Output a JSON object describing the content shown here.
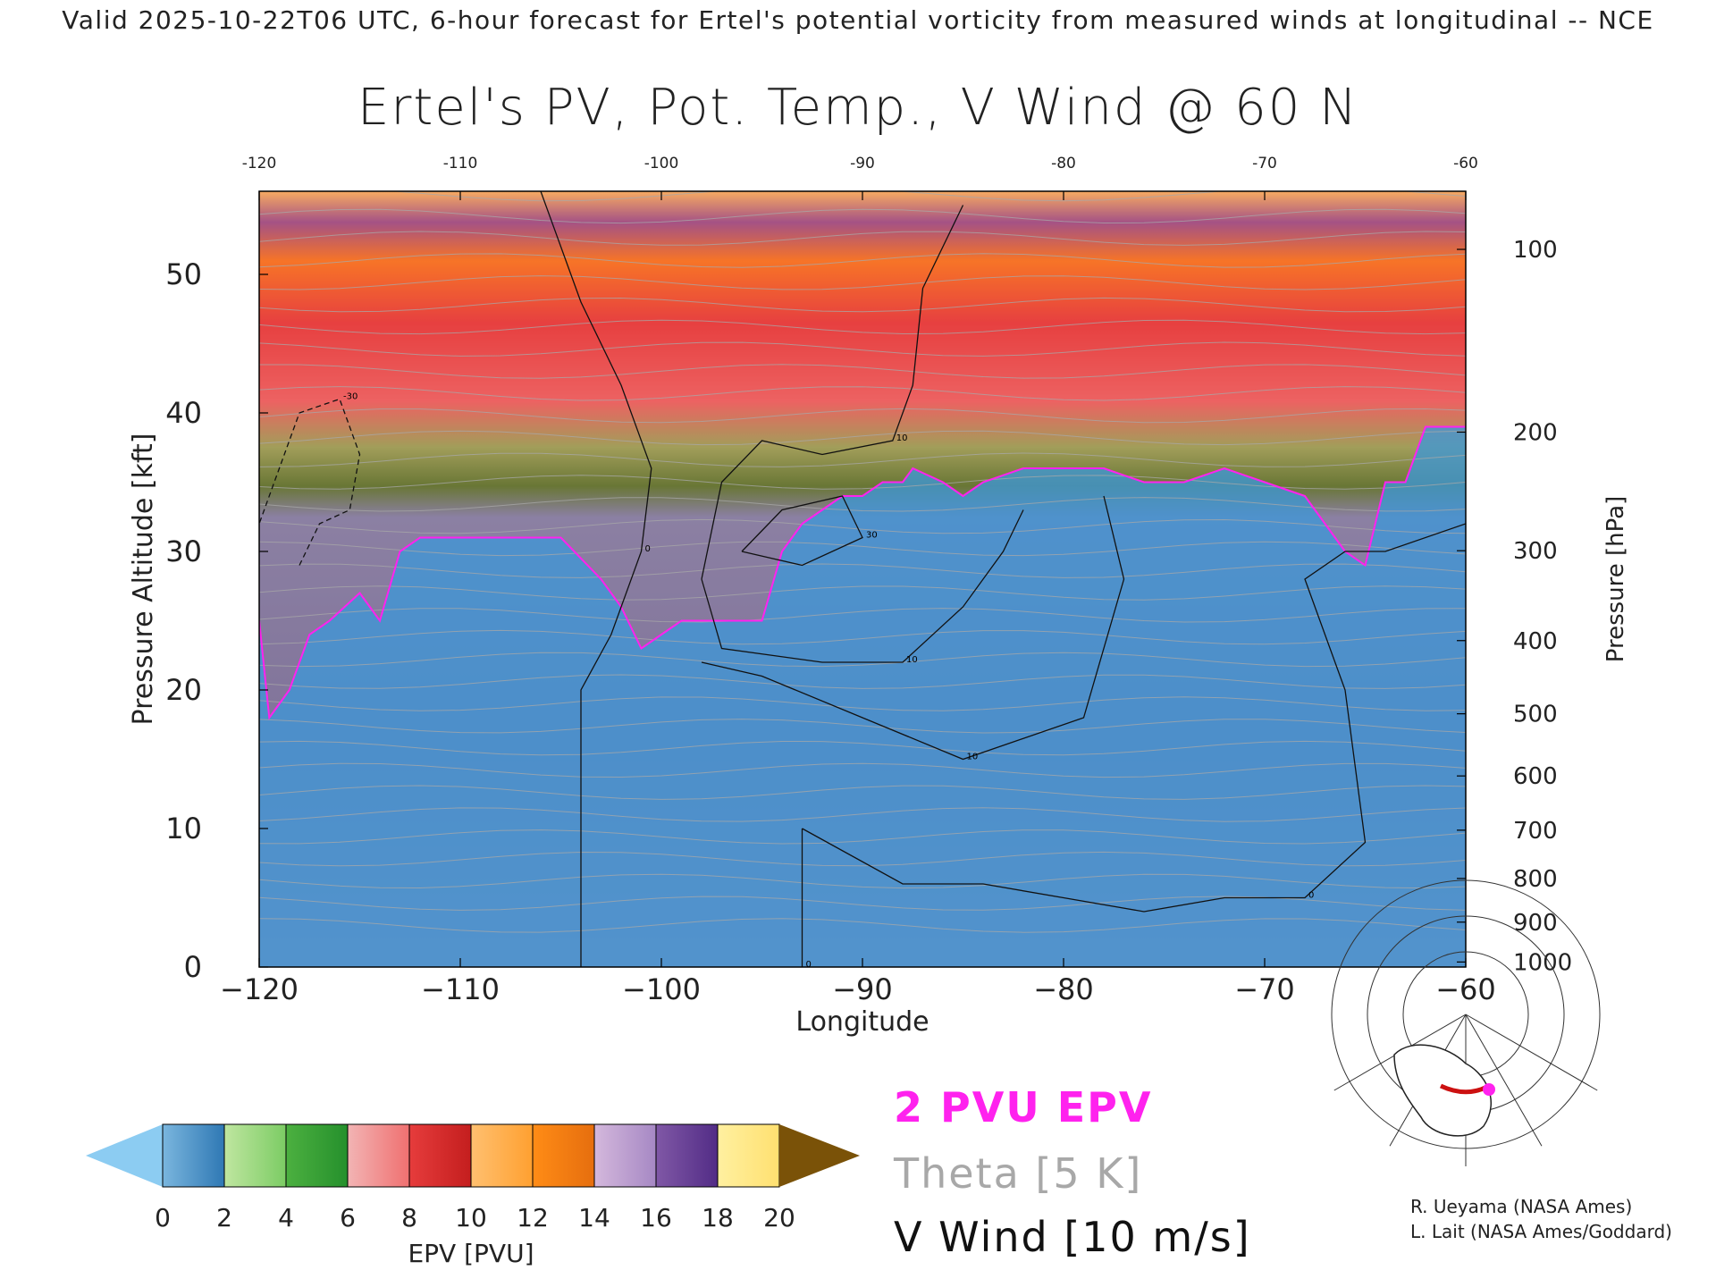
{
  "header": {
    "valid_line": "Valid 2025-10-22T06 UTC, 6-hour forecast for Ertel's potential vorticity from measured winds at longitudinal -- NCE"
  },
  "title": "Ertel's PV, Pot. Temp., V Wind @ 60 N",
  "colorbar": {
    "label": "EPV [PVU]",
    "ticks": [
      "0",
      "2",
      "4",
      "6",
      "8",
      "10",
      "12",
      "14",
      "16",
      "18",
      "20"
    ],
    "under_color": "#8cccf2",
    "over_color": "#7a5208",
    "bands": [
      [
        "#7ab6de",
        "#2f78b4"
      ],
      [
        "#bfe6a0",
        "#7ccc64"
      ],
      [
        "#4cb040",
        "#25902c"
      ],
      [
        "#f2b4b4",
        "#f07070"
      ],
      [
        "#e63c3c",
        "#c41e1e"
      ],
      [
        "#ffc070",
        "#ffa030"
      ],
      [
        "#ff8c16",
        "#e66e0e"
      ],
      [
        "#d4b8dc",
        "#a688c4"
      ],
      [
        "#8058a6",
        "#522c86"
      ],
      [
        "#fff0a0",
        "#ffe070"
      ]
    ]
  },
  "legend": {
    "pv_label": "2 PVU EPV",
    "pv_color": "#ff22ee",
    "theta_label": "Theta [5 K]",
    "theta_color": "#a8a8a8",
    "wind_label": "V Wind [10 m/s]",
    "wind_color": "#111111"
  },
  "credits": [
    "R. Ueyama (NASA Ames)",
    "L. Lait (NASA Ames/Goddard)"
  ],
  "inset_map": {
    "marker_color": "#ff22ee",
    "section_color": "#cc1111"
  },
  "chart_data": {
    "type": "heatmap",
    "title": "Ertel's PV, Pot. Temp., V Wind @ 60 N",
    "xlabel": "Longitude",
    "ylabel": "Pressure Altitude [kft]",
    "y2label": "Pressure [hPa]",
    "xlim": [
      -120,
      -60
    ],
    "ylim": [
      0,
      56
    ],
    "x_ticks": [
      "−120",
      "−110",
      "−100",
      "−90",
      "−80",
      "−70",
      "−60"
    ],
    "x_tick_values": [
      -120,
      -110,
      -100,
      -90,
      -80,
      -70,
      -60
    ],
    "top_ticks": [
      "-120",
      "-110",
      "-100",
      "-90",
      "-80",
      "-70",
      "-60"
    ],
    "y_ticks": [
      "0",
      "10",
      "20",
      "30",
      "40",
      "50"
    ],
    "y_tick_values": [
      0,
      10,
      20,
      30,
      40,
      50
    ],
    "pressure_ticks": [
      "100",
      "200",
      "300",
      "400",
      "500",
      "600",
      "700",
      "800",
      "900",
      "1000"
    ],
    "pressure_tick_values": [
      100,
      200,
      300,
      400,
      500,
      600,
      700,
      800,
      900,
      1000
    ],
    "tropopause_2pvu_kft": [
      [
        -120,
        25
      ],
      [
        -119.5,
        18
      ],
      [
        -118.5,
        20
      ],
      [
        -117.5,
        24
      ],
      [
        -116.5,
        25
      ],
      [
        -115,
        27
      ],
      [
        -114,
        25
      ],
      [
        -113,
        30
      ],
      [
        -112,
        31
      ],
      [
        -110,
        31
      ],
      [
        -106,
        31
      ],
      [
        -105,
        31
      ],
      [
        -103,
        28
      ],
      [
        -102,
        26
      ],
      [
        -101,
        23
      ],
      [
        -100,
        24
      ],
      [
        -99,
        25
      ],
      [
        -97,
        25
      ],
      [
        -96,
        25
      ],
      [
        -95,
        25
      ],
      [
        -94,
        30
      ],
      [
        -93,
        32
      ],
      [
        -92,
        33
      ],
      [
        -91,
        34
      ],
      [
        -90,
        34
      ],
      [
        -89,
        35
      ],
      [
        -88,
        35
      ],
      [
        -87.5,
        36
      ],
      [
        -86,
        35
      ],
      [
        -85,
        34
      ],
      [
        -84,
        35
      ],
      [
        -82,
        36
      ],
      [
        -80,
        36
      ],
      [
        -78,
        36
      ],
      [
        -76,
        35
      ],
      [
        -74,
        35
      ],
      [
        -72,
        36
      ],
      [
        -70,
        35
      ],
      [
        -68,
        34
      ],
      [
        -67,
        32
      ],
      [
        -66,
        30
      ],
      [
        -65,
        29
      ],
      [
        -64,
        35
      ],
      [
        -63,
        35
      ],
      [
        -62,
        39
      ],
      [
        -60,
        39
      ]
    ],
    "v_wind_contours_mps": [
      {
        "level": "0",
        "points": [
          [
            -106,
            56
          ],
          [
            -104,
            48
          ],
          [
            -102,
            42
          ],
          [
            -100.5,
            36
          ],
          [
            -101,
            30
          ],
          [
            -102.5,
            24
          ],
          [
            -104,
            20
          ],
          [
            -104,
            10
          ],
          [
            -104,
            0
          ]
        ]
      },
      {
        "level": "10",
        "points": [
          [
            -98,
            28
          ],
          [
            -97,
            35
          ],
          [
            -95,
            38
          ],
          [
            -92,
            37
          ],
          [
            -88.5,
            38
          ],
          [
            -87.5,
            42
          ],
          [
            -87,
            49
          ],
          [
            -85,
            55
          ]
        ]
      },
      {
        "level": "10",
        "points": [
          [
            -98,
            28
          ],
          [
            -97,
            23
          ],
          [
            -92,
            22
          ],
          [
            -88,
            22
          ],
          [
            -85,
            26
          ],
          [
            -83,
            30
          ],
          [
            -82,
            33
          ]
        ]
      },
      {
        "level": "10",
        "points": [
          [
            -78,
            34
          ],
          [
            -77,
            28
          ],
          [
            -79,
            18
          ],
          [
            -85,
            15
          ],
          [
            -90,
            18
          ],
          [
            -95,
            21
          ],
          [
            -98,
            22
          ]
        ]
      },
      {
        "level": "30",
        "points": [
          [
            -96,
            30
          ],
          [
            -94,
            33
          ],
          [
            -91,
            34
          ],
          [
            -90,
            31
          ],
          [
            -93,
            29
          ],
          [
            -96,
            30
          ]
        ]
      },
      {
        "level": "0",
        "points": [
          [
            -93,
            10
          ],
          [
            -93,
            0
          ]
        ]
      },
      {
        "level": "0",
        "points": [
          [
            -93,
            10
          ],
          [
            -88,
            6
          ],
          [
            -84,
            6
          ],
          [
            -80,
            5
          ],
          [
            -76,
            4
          ],
          [
            -72,
            5
          ],
          [
            -68,
            5
          ],
          [
            -65,
            9
          ],
          [
            -66,
            20
          ],
          [
            -68,
            28
          ],
          [
            -66,
            30
          ],
          [
            -64,
            30
          ],
          [
            -60,
            32
          ]
        ]
      },
      {
        "level": "-30",
        "points": [
          [
            -118,
            29
          ],
          [
            -117,
            32
          ],
          [
            -115.5,
            33
          ],
          [
            -115,
            37
          ],
          [
            -116,
            41
          ],
          [
            -118,
            40
          ],
          [
            -119,
            36
          ],
          [
            -120,
            32
          ]
        ]
      }
    ],
    "grid": false,
    "legend": "bottom"
  }
}
